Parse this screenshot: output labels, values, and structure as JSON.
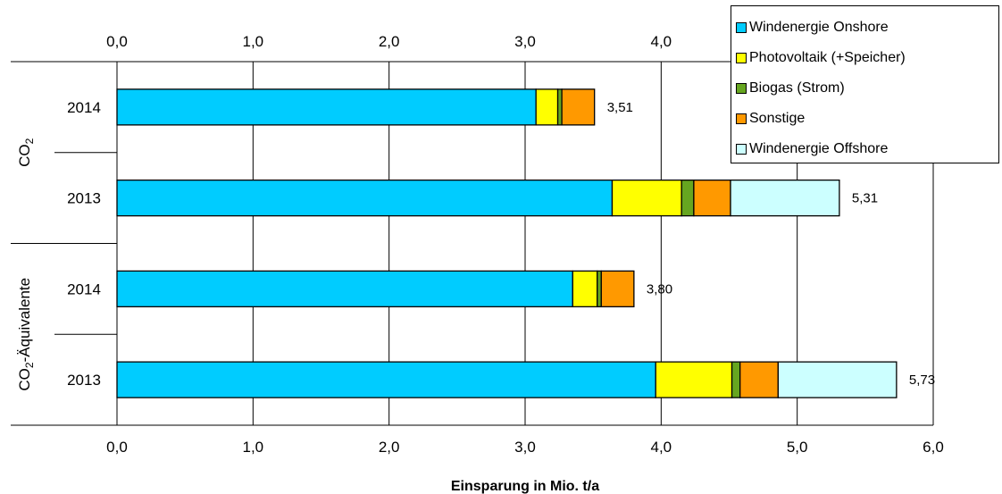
{
  "chart_data": {
    "type": "bar",
    "orientation": "horizontal",
    "stacked": true,
    "xlabel": "Einsparung in Mio. t/a",
    "xlim": [
      0,
      6
    ],
    "xticks": [
      "0,0",
      "1,0",
      "2,0",
      "3,0",
      "4,0",
      "5,0",
      "6,0"
    ],
    "grid": true,
    "legend_position": "top-right",
    "groups": [
      {
        "label_main": "CO",
        "label_sub": "2",
        "label_rest": ""
      },
      {
        "label_main": "CO",
        "label_sub": "2",
        "label_rest": "-Äquivalente"
      }
    ],
    "categories": [
      {
        "label": "2014",
        "group": 0,
        "total": "3,51"
      },
      {
        "label": "2013",
        "group": 0,
        "total": "5,31"
      },
      {
        "label": "2014",
        "group": 1,
        "total": "3,80"
      },
      {
        "label": "2013",
        "group": 1,
        "total": "5,73"
      }
    ],
    "series": [
      {
        "name": "Windenergie Onshore",
        "color": "#00CCFF",
        "values": [
          3.08,
          3.64,
          3.35,
          3.96
        ]
      },
      {
        "name": "Photovoltaik (+Speicher)",
        "color": "#FFFF00",
        "values": [
          0.16,
          0.51,
          0.18,
          0.56
        ]
      },
      {
        "name": "Biogas (Strom)",
        "color": "#66A620",
        "values": [
          0.03,
          0.09,
          0.03,
          0.06
        ]
      },
      {
        "name": "Sonstige",
        "color": "#FF9900",
        "values": [
          0.24,
          0.27,
          0.24,
          0.28
        ]
      },
      {
        "name": "Windenergie Offshore",
        "color": "#CCFFFF",
        "values": [
          0.0,
          0.8,
          0.0,
          0.87
        ]
      }
    ]
  }
}
